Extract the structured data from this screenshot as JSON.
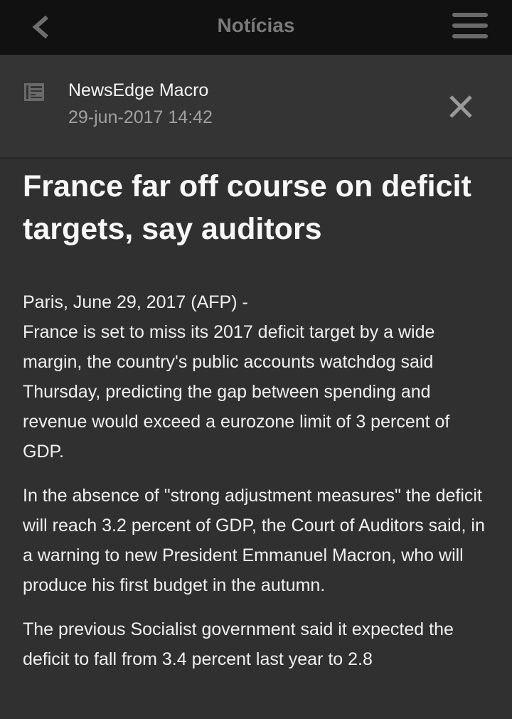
{
  "topbar": {
    "title": "Notícias",
    "back_icon": "chevron-left-icon",
    "menu_icon": "hamburger-menu-icon"
  },
  "header": {
    "source": "NewsEdge Macro",
    "datetime": "29-jun-2017 14:42",
    "source_icon": "newspaper-icon",
    "close_icon": "close-icon"
  },
  "article": {
    "headline": "France far off course on deficit targets, say auditors",
    "dateline": "Paris, June 29, 2017 (AFP) -",
    "paragraphs": [
      "France is set to miss its 2017 deficit target by a wide margin, the country's public accounts watchdog said Thursday, predicting the gap between spending and revenue would exceed a eurozone limit of 3 percent of GDP.",
      "In the absence of \"strong adjustment measures\" the deficit will reach 3.2 percent of GDP, the Court of Auditors said, in a warning to new President Emmanuel Macron, who will produce his first budget in the autumn.",
      "The previous Socialist government said it expected the deficit to fall from 3.4 percent last year to 2.8"
    ]
  }
}
